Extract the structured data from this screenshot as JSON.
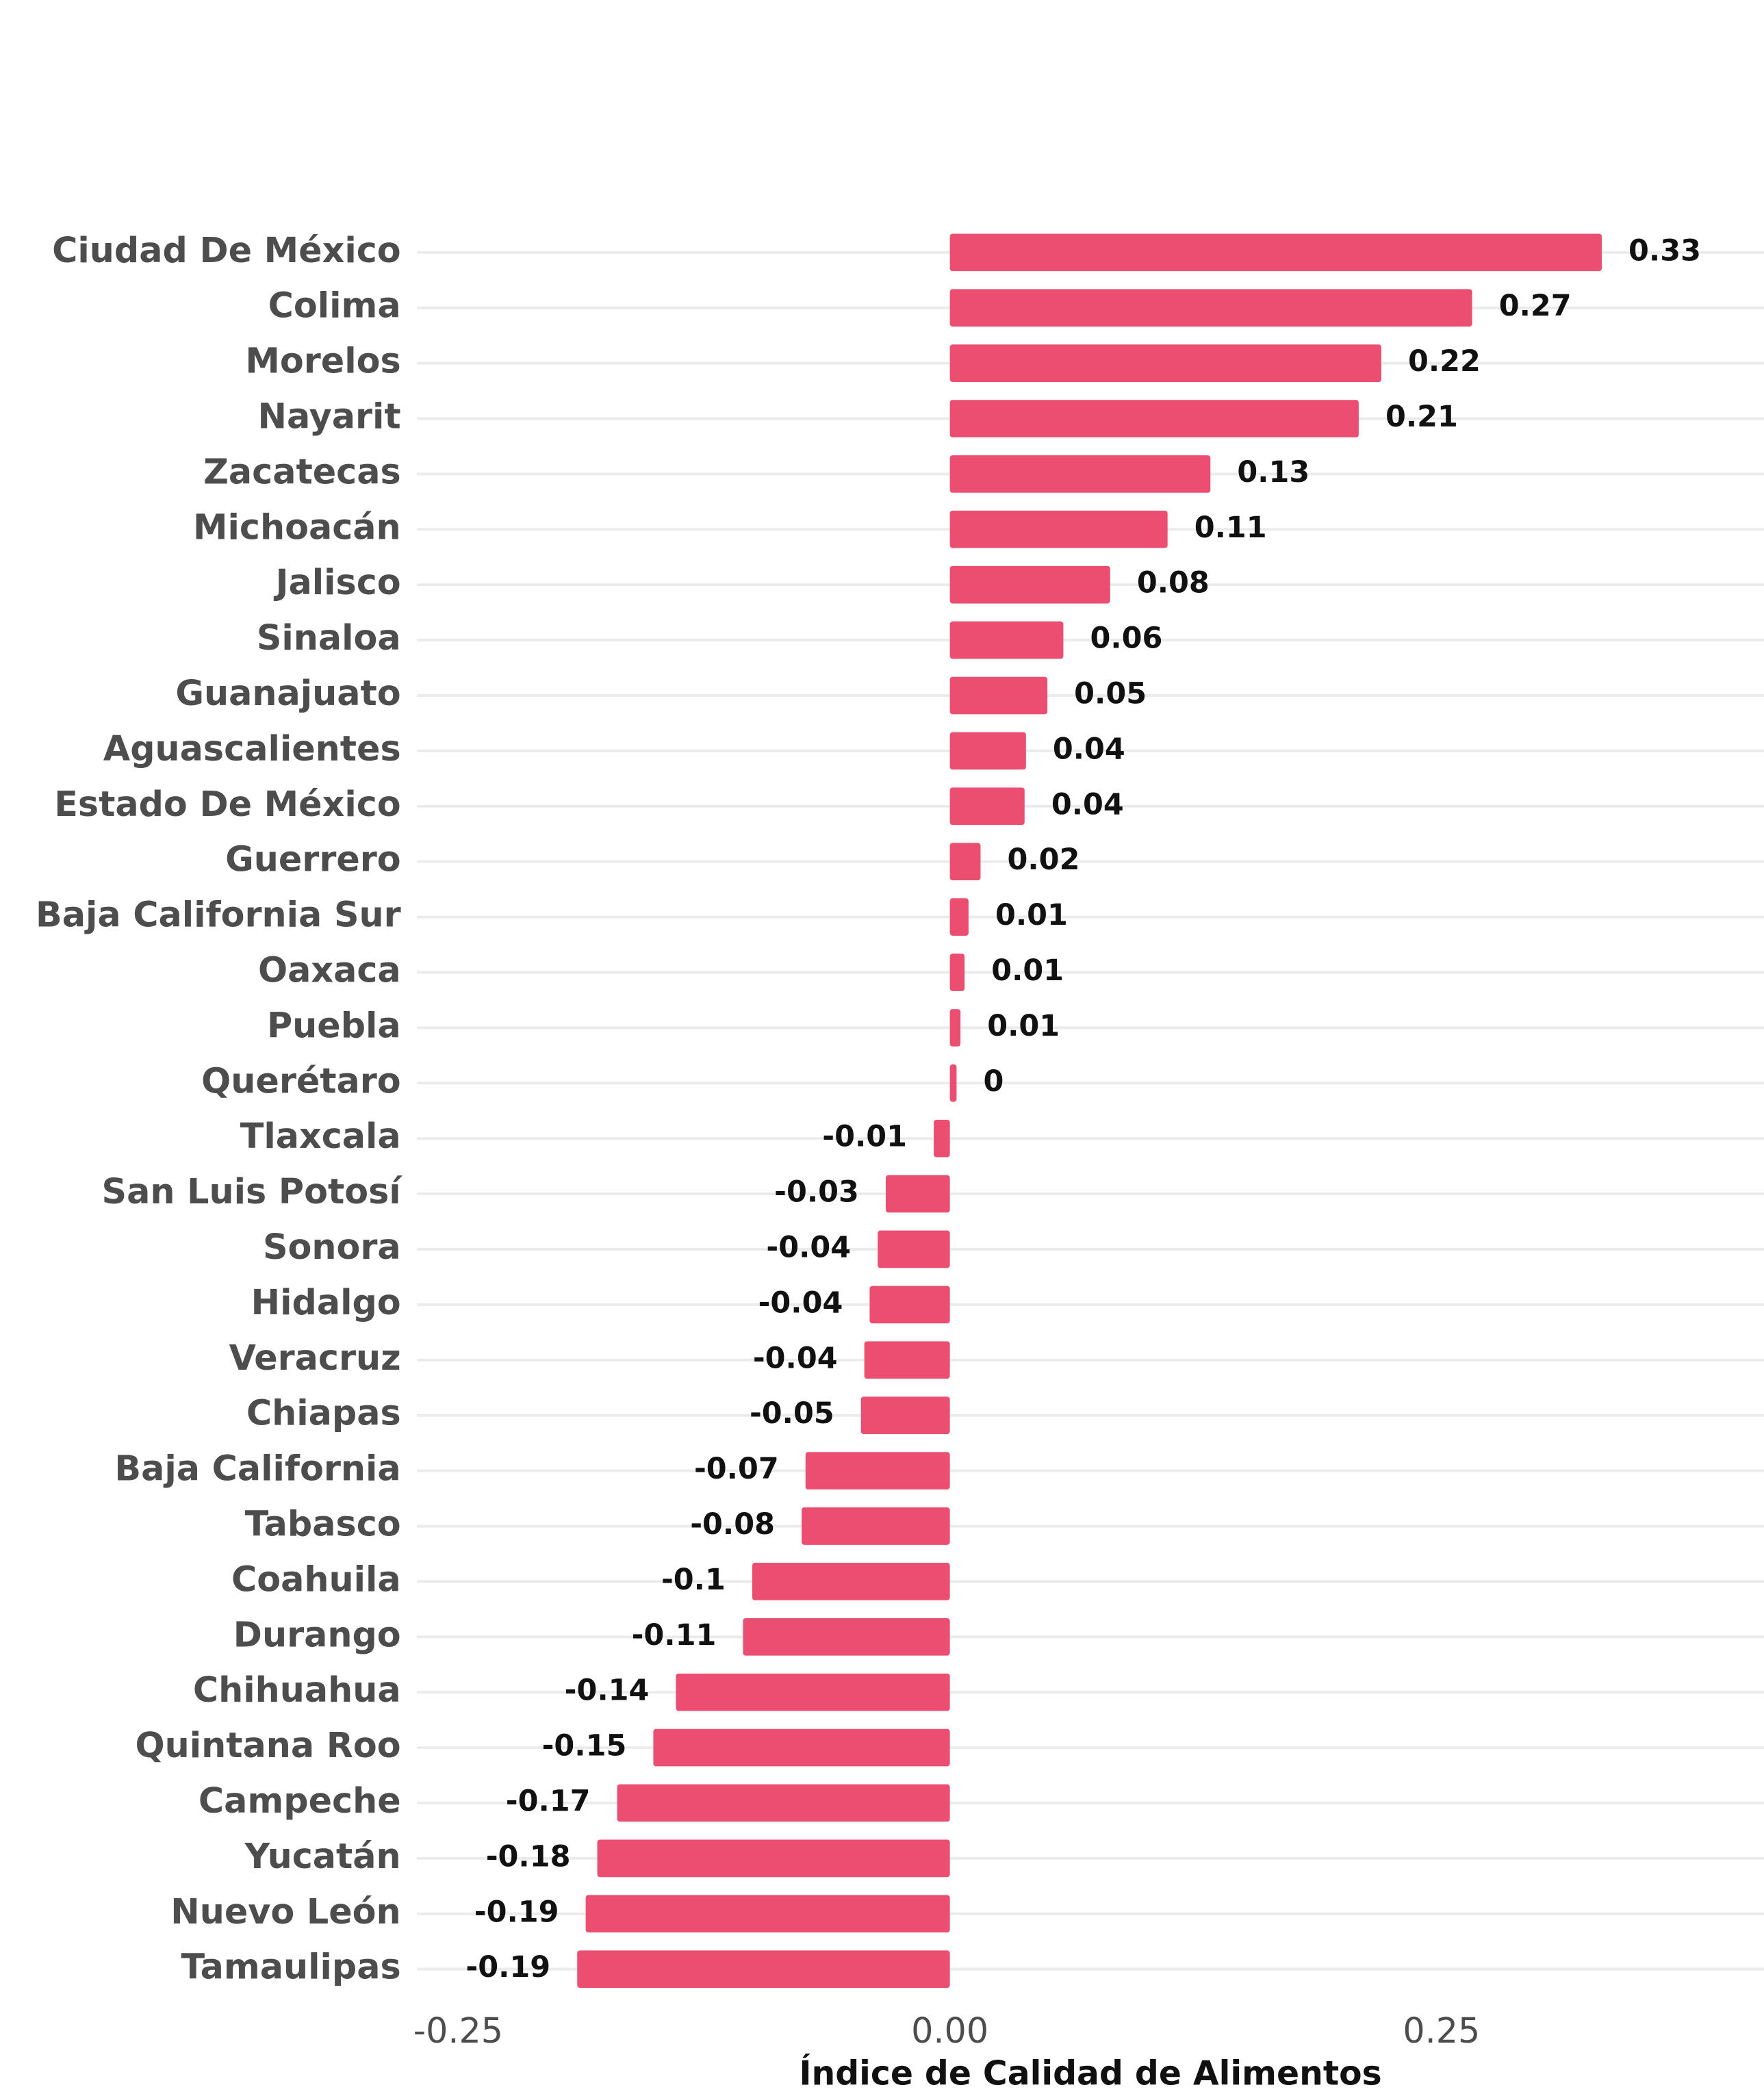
{
  "chart_data": {
    "type": "barh",
    "x_label": "Índice de Calidad de Alimentos",
    "categories": [
      "Ciudad De México",
      "Colima",
      "Morelos",
      "Nayarit",
      "Zacatecas",
      "Michoacán",
      "Jalisco",
      "Sinaloa",
      "Guanajuato",
      "Aguascalientes",
      "Estado De México",
      "Guerrero",
      "Baja California Sur",
      "Oaxaca",
      "Puebla",
      "Querétaro",
      "Tlaxcala",
      "San Luis Potosí",
      "Sonora",
      "Hidalgo",
      "Veracruz",
      "Chiapas",
      "Baja California",
      "Tabasco",
      "Coahuila",
      "Durango",
      "Chihuahua",
      "Quintana Roo",
      "Campeche",
      "Yucatán",
      "Nuevo León",
      "Tamaulipas"
    ],
    "values": [
      0.3315,
      0.2656,
      0.2194,
      0.2079,
      0.1325,
      0.1107,
      0.0815,
      0.0577,
      0.0496,
      0.0387,
      0.038,
      0.0156,
      0.0095,
      0.0075,
      0.0054,
      0.0034,
      -0.0082,
      -0.0326,
      -0.0367,
      -0.0408,
      -0.0435,
      -0.0452,
      -0.0734,
      -0.0754,
      -0.1005,
      -0.1052,
      -0.1393,
      -0.1508,
      -0.1692,
      -0.1793,
      -0.1852,
      -0.1895
    ],
    "value_labels": [
      "0.33",
      "0.27",
      "0.22",
      "0.21",
      "0.13",
      "0.11",
      "0.08",
      "0.06",
      "0.05",
      "0.04",
      "0.04",
      "0.02",
      "0.01",
      "0.01",
      "0.01",
      "0",
      "-0.01",
      "-0.03",
      "-0.04",
      "-0.04",
      "-0.04",
      "-0.05",
      "-0.07",
      "-0.08",
      "-0.1",
      "-0.11",
      "-0.14",
      "-0.15",
      "-0.17",
      "-0.18",
      "-0.19",
      "-0.19"
    ],
    "color": "#ec4e71",
    "xlim": [
      -0.271,
      0.414
    ],
    "xticks": [
      -0.25,
      {
        "value": 0,
        "label": "0.00"
      },
      0.25
    ],
    "grid": true
  }
}
